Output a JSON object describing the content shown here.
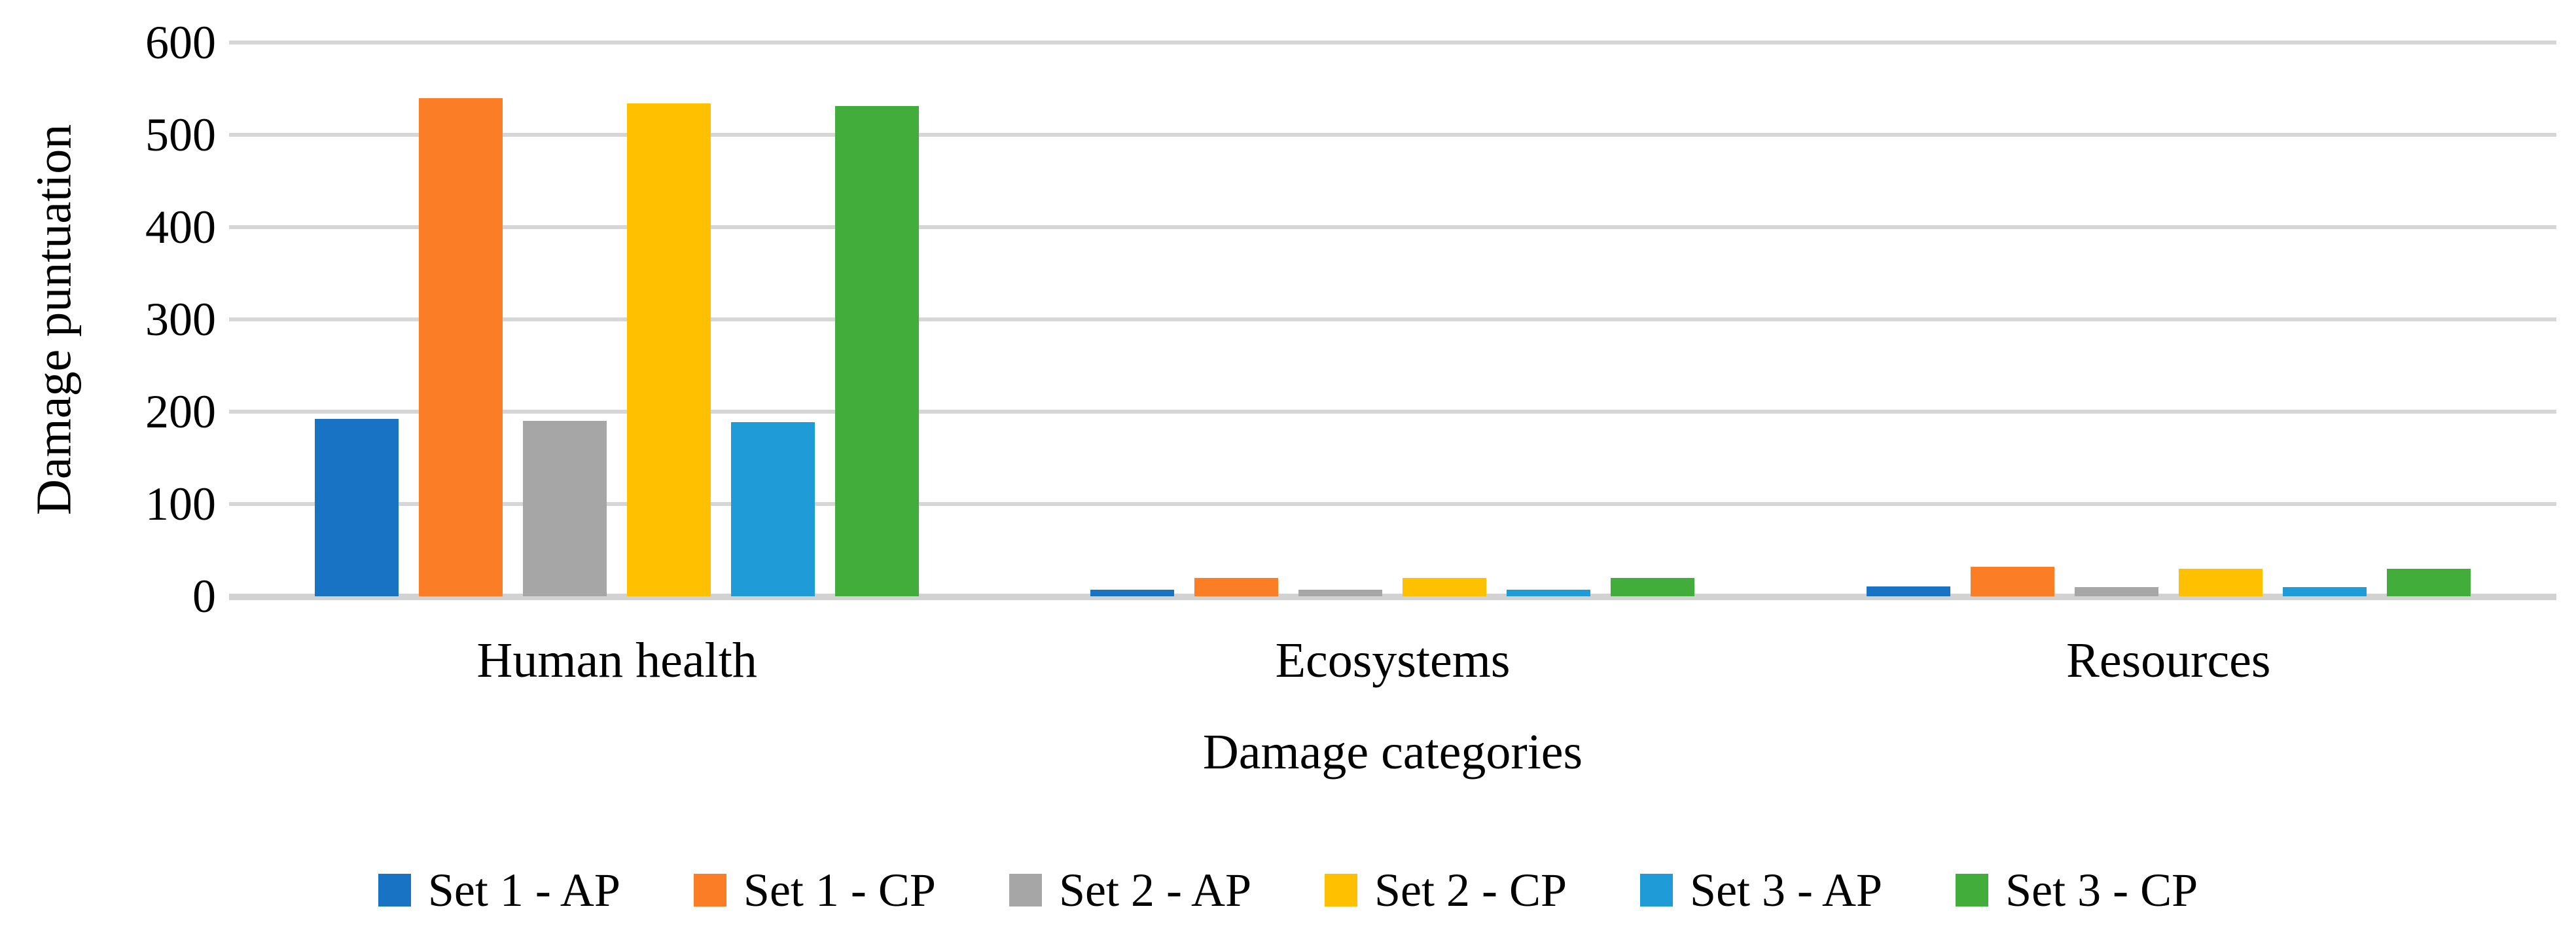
{
  "chart_data": {
    "type": "bar",
    "title": "",
    "categories": [
      "Human health",
      "Ecosystems",
      "Resources"
    ],
    "series": [
      {
        "name": "Set 1 - AP",
        "color": "#1873C5",
        "values": [
          192,
          7,
          11
        ]
      },
      {
        "name": "Set 1 - CP",
        "color": "#FB7D26",
        "values": [
          540,
          20,
          32
        ]
      },
      {
        "name": "Set 2 - AP",
        "color": "#A6A6A6",
        "values": [
          190,
          7,
          10
        ]
      },
      {
        "name": "Set 2 - CP",
        "color": "#FFC000",
        "values": [
          534,
          20,
          30
        ]
      },
      {
        "name": "Set 3 - AP",
        "color": "#1F9CD8",
        "values": [
          189,
          7,
          10
        ]
      },
      {
        "name": "Set 3 - CP",
        "color": "#43AD3C",
        "values": [
          531,
          20,
          30
        ]
      }
    ],
    "xlabel": "Damage categories",
    "ylabel": "Damage puntuation",
    "ylim": [
      0,
      600
    ],
    "yticks": [
      0,
      100,
      200,
      300,
      400,
      500,
      600
    ],
    "grid": true,
    "legend_position": "bottom",
    "colors": {
      "gridline": "#D6D6D6",
      "axis_line": "#D2D2D2",
      "text": "#000000",
      "background": "#FFFFFF"
    }
  }
}
